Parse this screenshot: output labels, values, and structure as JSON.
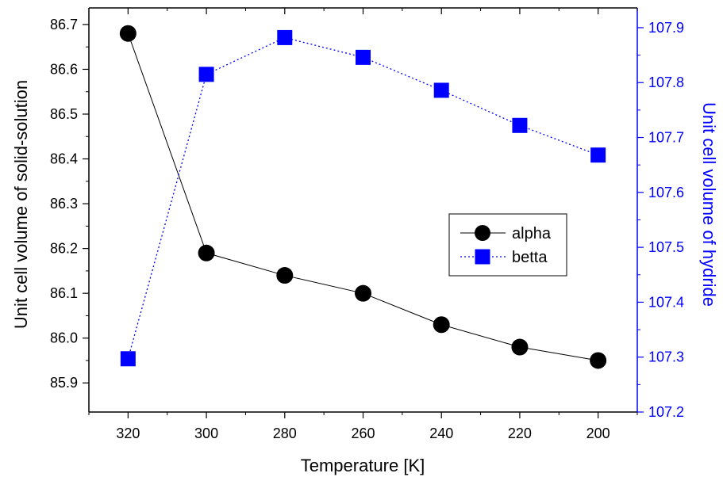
{
  "chart_data": {
    "type": "line",
    "xlabel": "Temperature [K]",
    "ylabel_left": "Unit cell volume of solid-solution",
    "ylabel_right": "Unit cell volume of hydride",
    "x": [
      320,
      300,
      280,
      260,
      240,
      220,
      200
    ],
    "x_ticks": [
      "320",
      "300",
      "280",
      "260",
      "240",
      "220",
      "200"
    ],
    "y_left_ticks": [
      "85.9",
      "86.0",
      "86.1",
      "86.2",
      "86.3",
      "86.4",
      "86.5",
      "86.6",
      "86.7"
    ],
    "y_right_ticks": [
      "107.2",
      "107.3",
      "107.4",
      "107.5",
      "107.6",
      "107.7",
      "107.8",
      "107.9"
    ],
    "xlim": [
      330,
      190
    ],
    "ylim_left": [
      85.835,
      86.737
    ],
    "ylim_right": [
      107.2,
      107.936
    ],
    "x_reversed": true,
    "series": [
      {
        "name": "alpha",
        "axis": "left",
        "marker": "circle",
        "line_style": "solid",
        "color": "#000000",
        "values": [
          86.68,
          86.19,
          86.14,
          86.1,
          86.03,
          85.98,
          85.95
        ]
      },
      {
        "name": "betta",
        "axis": "right",
        "marker": "square",
        "line_style": "dotted",
        "color": "#0000ff",
        "values": [
          107.297,
          107.815,
          107.882,
          107.846,
          107.786,
          107.722,
          107.668
        ]
      }
    ],
    "legend": {
      "position": "center-right",
      "entries": [
        "alpha",
        "betta"
      ]
    },
    "right_axis_color": "#0000ff",
    "grid": false
  }
}
